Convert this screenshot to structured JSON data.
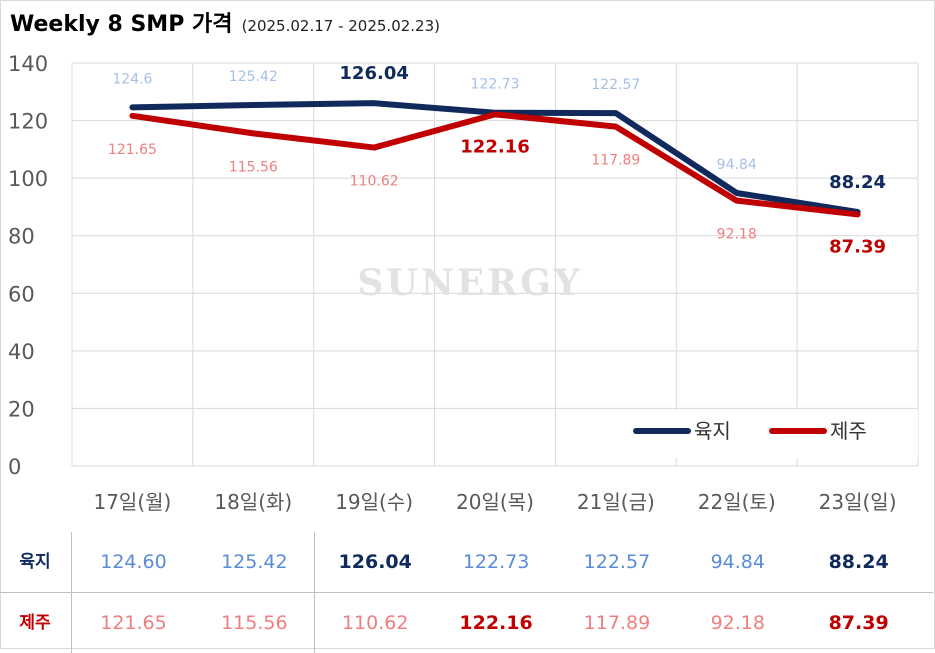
{
  "title": "Weekly 8 SMP 가격",
  "subtitle": "(2025.02.17 - 2025.02.23)",
  "watermark": "SUNERGY",
  "colors": {
    "land_line": "#102a5c",
    "land_label": "#a6bfe8",
    "land_label_highlight": "#102a5c",
    "land_table_value": "#5a8bd6",
    "jeju_line": "#c00000",
    "jeju_label": "#ef7f7f",
    "jeju_label_highlight": "#c00000",
    "jeju_table_value": "#ef7f7f",
    "grid": "#d9d9d9",
    "axis_text": "#595959"
  },
  "chart_data": {
    "type": "line",
    "title": "Weekly 8 SMP 가격",
    "subtitle": "(2025.02.17 - 2025.02.23)",
    "categories": [
      "17일(월)",
      "18일(화)",
      "19일(수)",
      "20일(목)",
      "21일(금)",
      "22일(토)",
      "23일(일)"
    ],
    "ylim": [
      0,
      140
    ],
    "yticks": [
      0,
      20,
      40,
      60,
      80,
      100,
      120,
      140
    ],
    "grid": true,
    "legend_position": "bottom-right",
    "series": [
      {
        "name": "육지",
        "values": [
          124.6,
          125.42,
          126.04,
          122.73,
          122.57,
          94.84,
          88.24
        ],
        "labels": [
          "124.6",
          "125.42",
          "126.04",
          "122.73",
          "122.57",
          "94.84",
          "88.24"
        ],
        "highlight_indices": [
          2,
          6
        ]
      },
      {
        "name": "제주",
        "values": [
          121.65,
          115.56,
          110.62,
          122.16,
          117.89,
          92.18,
          87.39
        ],
        "labels": [
          "121.65",
          "115.56",
          "110.62",
          "122.16",
          "117.89",
          "92.18",
          "87.39"
        ],
        "highlight_indices": [
          3,
          6
        ]
      }
    ]
  },
  "table": {
    "rows": [
      {
        "label": "육지",
        "values": [
          "124.60",
          "125.42",
          "126.04",
          "122.73",
          "122.57",
          "94.84",
          "88.24"
        ],
        "highlight_indices": [
          2,
          6
        ]
      },
      {
        "label": "제주",
        "values": [
          "121.65",
          "115.56",
          "110.62",
          "122.16",
          "117.89",
          "92.18",
          "87.39"
        ],
        "highlight_indices": [
          3,
          6
        ]
      }
    ]
  }
}
